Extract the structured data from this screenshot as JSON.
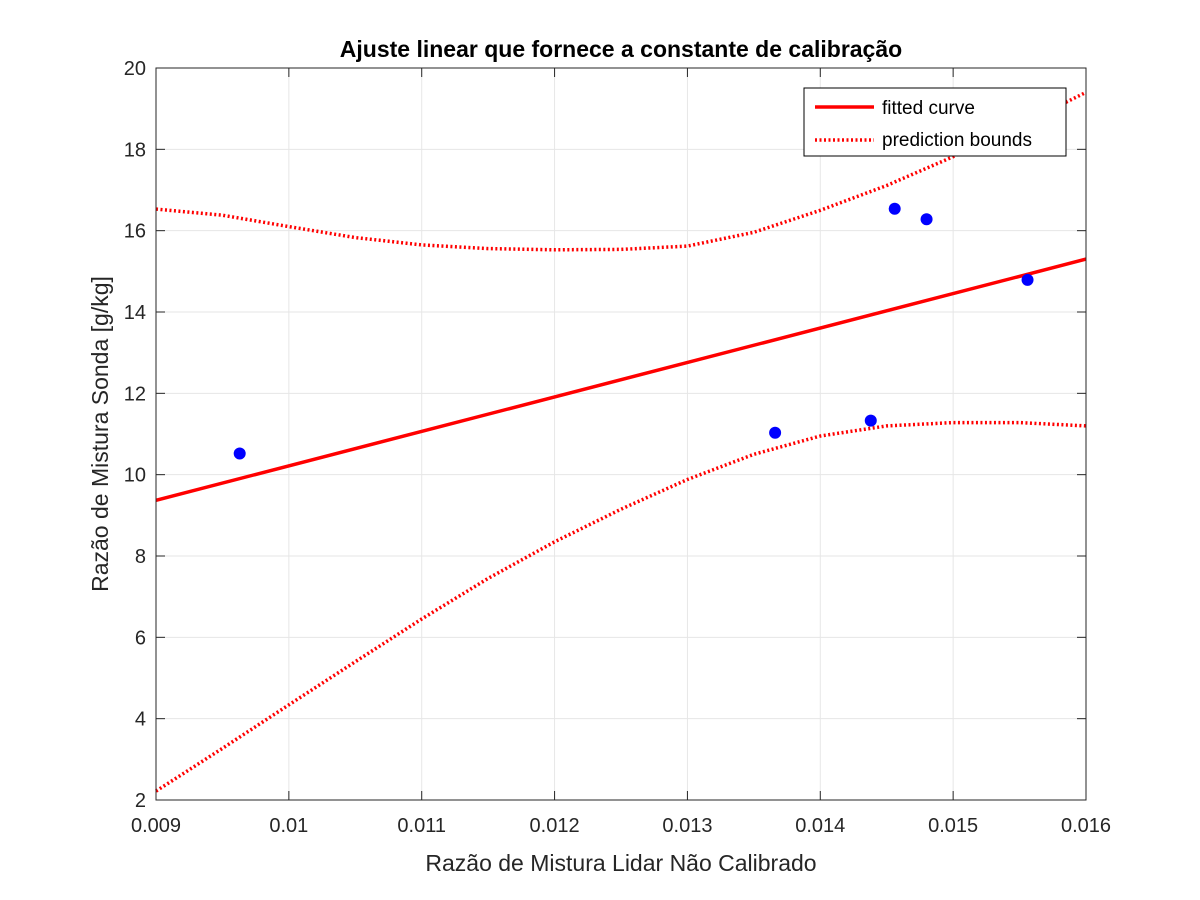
{
  "chart_data": {
    "type": "scatter",
    "title": "Ajuste linear que fornece a constante de calibração",
    "xlabel": "Razão de Mistura Lidar Não Calibrado",
    "ylabel": "Razão de Mistura Sonda [g/kg]",
    "xlim": [
      0.009,
      0.016
    ],
    "ylim": [
      2,
      20
    ],
    "xticks": [
      0.009,
      0.01,
      0.011,
      0.012,
      0.013,
      0.014,
      0.015,
      0.016
    ],
    "xtick_labels": [
      "0.009",
      "0.01",
      "0.011",
      "0.012",
      "0.013",
      "0.014",
      "0.015",
      "0.016"
    ],
    "yticks": [
      2,
      4,
      6,
      8,
      10,
      12,
      14,
      16,
      18,
      20
    ],
    "ytick_labels": [
      "2",
      "4",
      "6",
      "8",
      "10",
      "12",
      "14",
      "16",
      "18",
      "20"
    ],
    "grid": true,
    "legend_position": "top-right",
    "points": {
      "color": "#0000ff",
      "x": [
        0.00963,
        0.01366,
        0.01438,
        0.01456,
        0.0148,
        0.01556
      ],
      "y": [
        10.52,
        11.03,
        11.33,
        16.54,
        16.28,
        14.79
      ]
    },
    "series": [
      {
        "name": "fitted curve",
        "style": "solid",
        "color": "#ff0000",
        "x": [
          0.009,
          0.016
        ],
        "y": [
          9.37,
          15.3
        ]
      },
      {
        "name": "prediction bounds",
        "style": "dotted",
        "color": "#ff0000",
        "x": [
          0.009,
          0.0095,
          0.01,
          0.0105,
          0.011,
          0.0115,
          0.012,
          0.0125,
          0.013,
          0.0135,
          0.014,
          0.0145,
          0.015,
          0.0155,
          0.016
        ],
        "y": [
          16.53,
          16.38,
          16.1,
          15.83,
          15.65,
          15.56,
          15.53,
          15.54,
          15.62,
          15.96,
          16.5,
          17.11,
          17.82,
          18.6,
          19.4
        ]
      },
      {
        "name": "",
        "style": "dotted",
        "color": "#ff0000",
        "x": [
          0.009,
          0.0095,
          0.01,
          0.0105,
          0.011,
          0.0115,
          0.012,
          0.0125,
          0.013,
          0.0135,
          0.014,
          0.0145,
          0.015,
          0.0155,
          0.016
        ],
        "y": [
          2.22,
          3.27,
          4.34,
          5.4,
          6.45,
          7.45,
          8.35,
          9.15,
          9.88,
          10.5,
          10.95,
          11.2,
          11.28,
          11.28,
          11.2
        ]
      }
    ]
  }
}
